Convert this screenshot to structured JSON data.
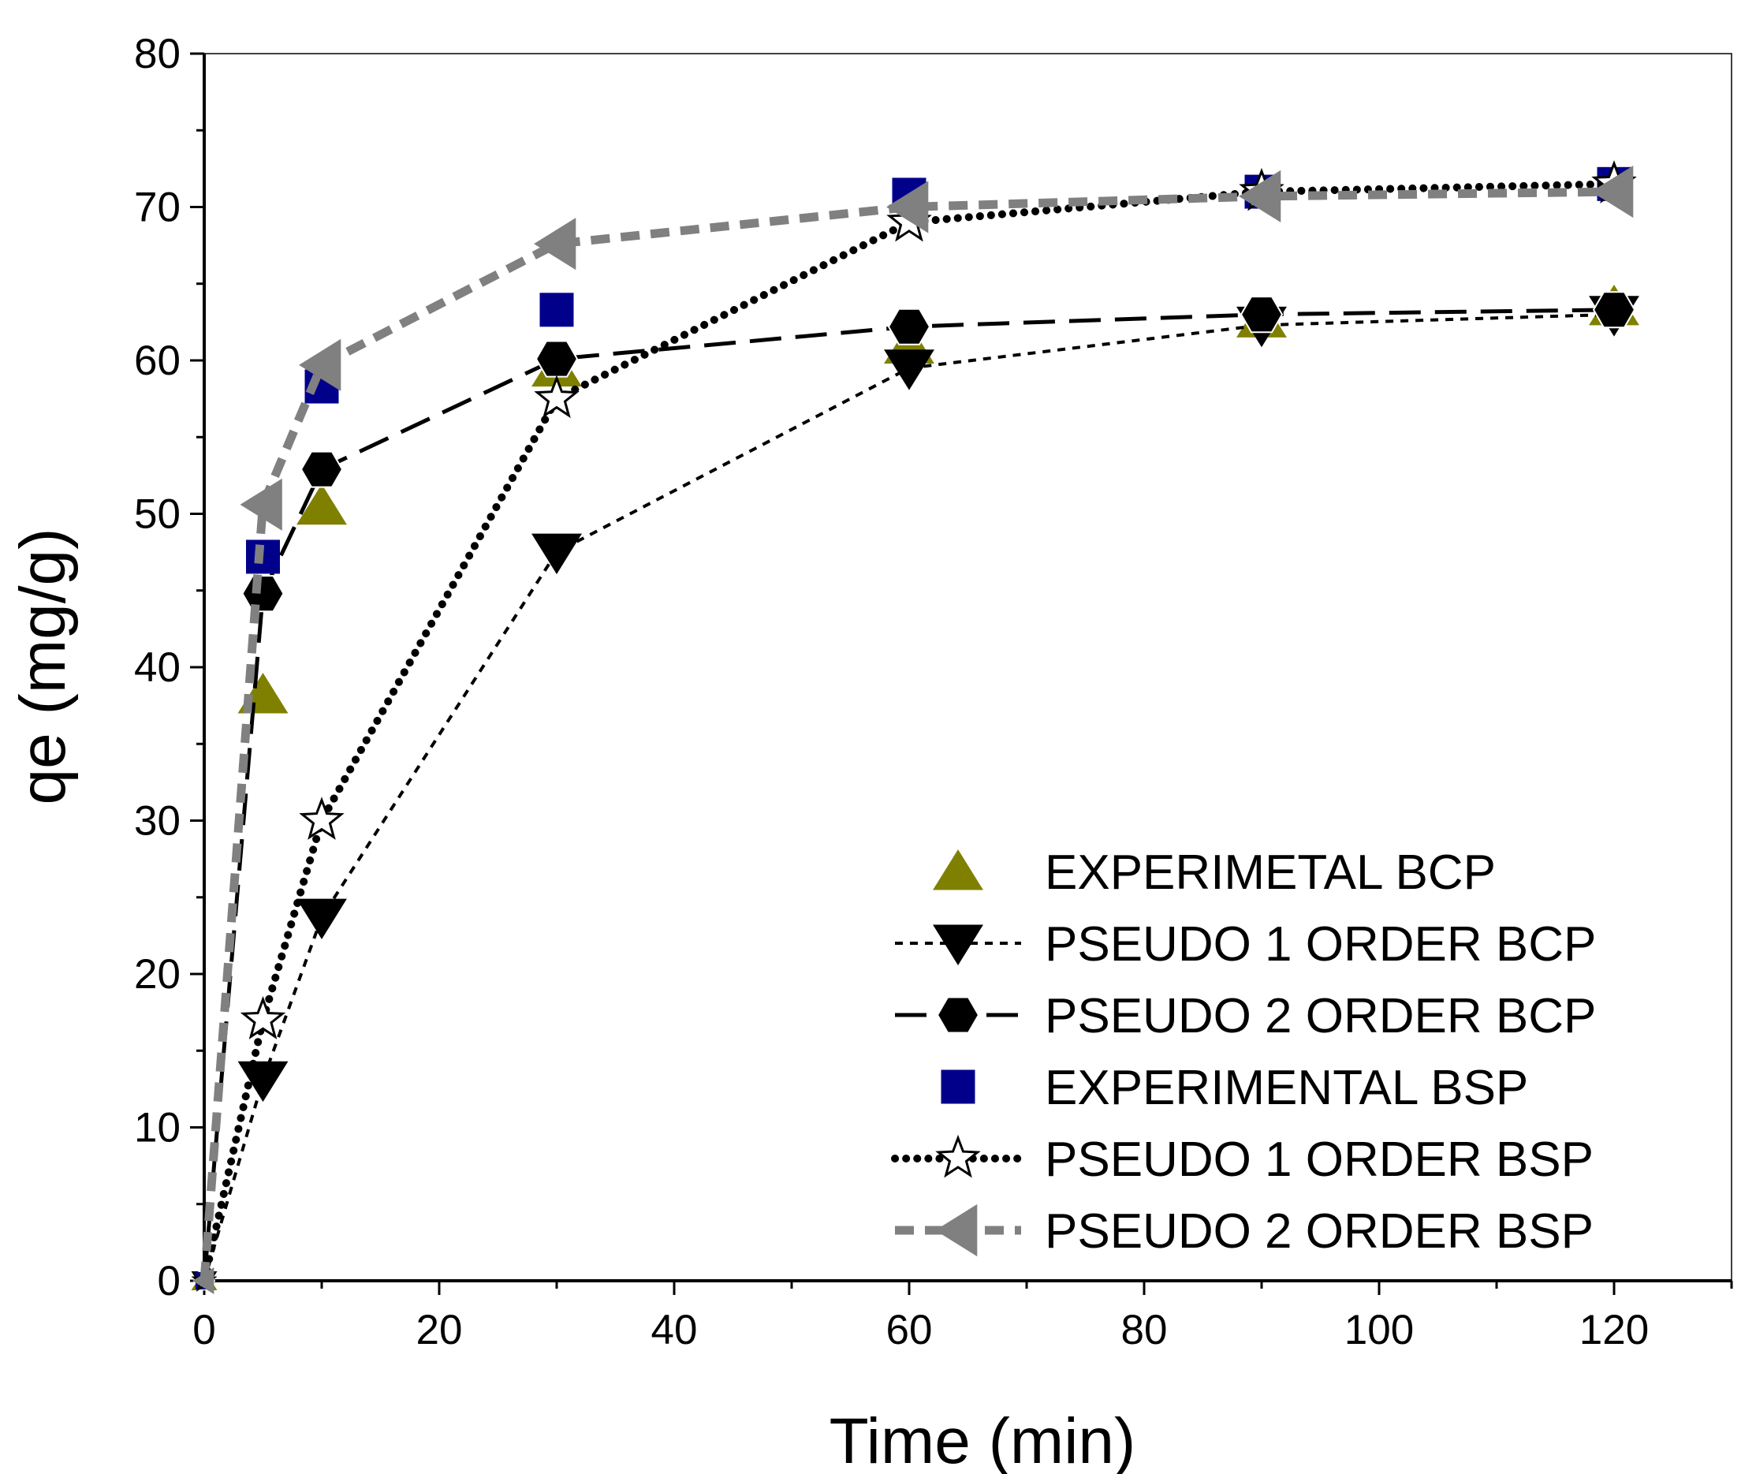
{
  "chart_data": {
    "type": "line",
    "title": "",
    "xlabel": "Time (min)",
    "ylabel": "qe (mg/g)",
    "xlim": [
      0,
      130
    ],
    "ylim": [
      0,
      80
    ],
    "xticks": [
      0,
      20,
      40,
      60,
      80,
      100,
      120
    ],
    "yticks": [
      0,
      10,
      20,
      30,
      40,
      50,
      60,
      70,
      80
    ],
    "x_minor_step": 10,
    "y_minor_step": 5,
    "grid": false,
    "legend_position": "bottom-right",
    "x": [
      0,
      5,
      10,
      30,
      60,
      90,
      120
    ],
    "series": [
      {
        "id": "exp_bcp",
        "name": "EXPERIMETAL BCP",
        "values": [
          0,
          38.2,
          50.5,
          59.5,
          61,
          62.7,
          63.5
        ],
        "marker": "triangle-up",
        "line": "none",
        "color": "#808000",
        "marker_fill": "#808000"
      },
      {
        "id": "p1_bcp",
        "name": "PSEUDO 1 ORDER BCP",
        "values": [
          0,
          13.1,
          23.7,
          47.5,
          59.5,
          62.3,
          63.0
        ],
        "marker": "triangle-down",
        "line": "short-dash",
        "color": "#000000",
        "marker_fill": "#000000"
      },
      {
        "id": "p2_bcp",
        "name": "PSEUDO 2 ORDER BCP",
        "values": [
          0,
          44.8,
          52.9,
          60.1,
          62.2,
          63.0,
          63.3
        ],
        "marker": "hexagon",
        "line": "long-dash",
        "color": "#000000",
        "marker_fill": "#000000"
      },
      {
        "id": "exp_bsp",
        "name": "EXPERIMENTAL BSP",
        "values": [
          0,
          47.2,
          58.3,
          63.3,
          70.8,
          71.0,
          71.5
        ],
        "marker": "square",
        "line": "none",
        "color": "#00008b",
        "marker_fill": "#00008b"
      },
      {
        "id": "p1_bsp",
        "name": "PSEUDO 1 ORDER BSP",
        "values": [
          0,
          17.0,
          30.0,
          57.5,
          69.0,
          71.0,
          71.5
        ],
        "marker": "star",
        "line": "dot",
        "color": "#000000",
        "marker_fill": "#ffffff"
      },
      {
        "id": "p2_bsp",
        "name": "PSEUDO 2 ORDER BSP",
        "values": [
          0,
          50.6,
          59.7,
          67.6,
          70.0,
          70.7,
          71.0
        ],
        "marker": "triangle-left",
        "line": "dash",
        "color": "#808080",
        "marker_fill": "#808080"
      }
    ]
  }
}
